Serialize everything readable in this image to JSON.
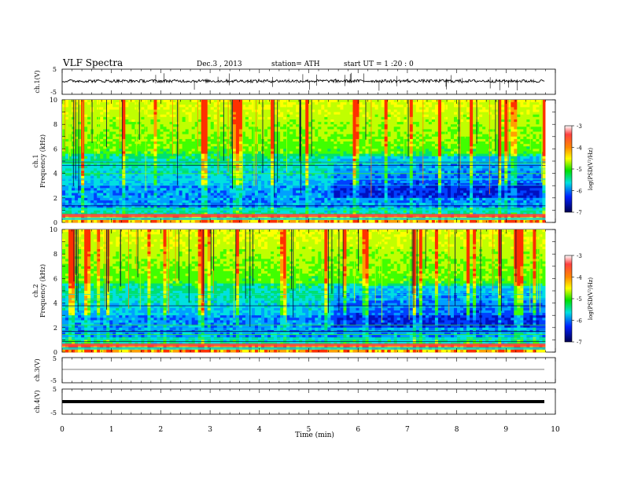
{
  "header": {
    "title": "VLF  Spectra",
    "date": "Dec.3  , 2013",
    "station": "station= ATH",
    "start": "start  UT  =   1  :20 : 0"
  },
  "colorbar": {
    "label": "log(PSD(V²/Hz)",
    "ticks": [
      "-3",
      "-4",
      "-5",
      "-6",
      "-7"
    ],
    "colors": [
      "#ff3030",
      "#ffb000",
      "#ffff00",
      "#00e000",
      "#00e0e0",
      "#0020ff",
      "#000060"
    ]
  },
  "chart_data": [
    {
      "type": "line",
      "name": "waveform-ch1",
      "ylabel": "ch.1(V)",
      "yticks": [
        "5",
        "-5"
      ],
      "ylim": [
        -5,
        5
      ],
      "xlim": [
        0,
        10
      ],
      "description_values": {
        "baseline_v": 0.3,
        "spike_max_v": 3.5,
        "spike_min_v": -4.0
      }
    },
    {
      "type": "heatmap",
      "name": "spectrogram-ch1",
      "ylabel_top": "ch.1",
      "ylabel": "Frequency  (kHz)",
      "yticks": [
        "0",
        "2",
        "4",
        "6",
        "8",
        "10"
      ],
      "ylim": [
        0,
        10
      ],
      "xlim": [
        0,
        9.8
      ],
      "zlim": [
        -7,
        -3
      ],
      "transition_min": 5.5
    },
    {
      "type": "heatmap",
      "name": "spectrogram-ch2",
      "ylabel_top": "ch.2",
      "ylabel": "Frequency  (kHz)",
      "yticks": [
        "0",
        "2",
        "4",
        "6",
        "8",
        "10"
      ],
      "ylim": [
        0,
        10
      ],
      "xlim": [
        0,
        9.8
      ],
      "zlim": [
        -7,
        -3
      ],
      "transition_min": 5.5
    },
    {
      "type": "line",
      "name": "waveform-ch3",
      "ylabel": "ch.3(V)",
      "yticks": [
        "5",
        "-5"
      ],
      "ylim": [
        -5,
        5
      ],
      "xlim": [
        0,
        9.8
      ],
      "description_values": {
        "baseline_v": 0
      }
    },
    {
      "type": "line",
      "name": "waveform-ch4",
      "ylabel": "ch.4(V)",
      "yticks": [
        "5",
        "-5"
      ],
      "ylim": [
        -5,
        5
      ],
      "xlim": [
        0,
        9.8
      ],
      "description_values": {
        "baseline_v": 0
      }
    }
  ],
  "xaxis": {
    "label": "Time  (min)",
    "ticks": [
      "0",
      "1",
      "2",
      "3",
      "4",
      "5",
      "6",
      "7",
      "8",
      "9",
      "10"
    ],
    "range": [
      0,
      10
    ]
  }
}
